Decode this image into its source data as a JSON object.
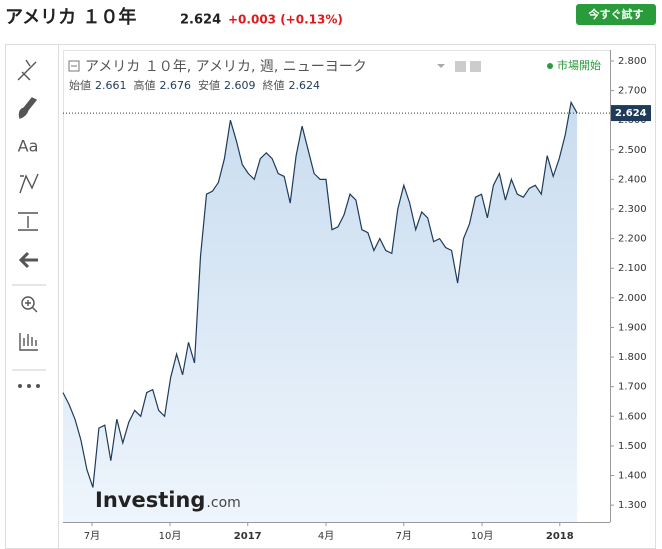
{
  "header": {
    "title": "アメリカ １０年",
    "price": "2.624",
    "change": "+0.003 (+0.13%)",
    "button": "今すぐ試す"
  },
  "toolbar": {
    "text_tool": "Aa"
  },
  "chart_data": {
    "type": "area",
    "legend": "アメリカ １０年, アメリカ, 週, ニューヨーク",
    "status": "市場開始",
    "ohlc": [
      {
        "label": "始値",
        "value": 2.661
      },
      {
        "label": "高値",
        "value": 2.676
      },
      {
        "label": "安値",
        "value": 2.609
      },
      {
        "label": "終値",
        "value": 2.624
      }
    ],
    "watermark": {
      "brand": "Investing",
      "suffix": ".com"
    },
    "last_value": 2.624,
    "color": "#1f3b5a",
    "x": [
      0,
      1,
      2,
      3,
      4,
      5,
      6,
      7,
      8,
      9,
      10,
      11,
      12,
      13,
      14,
      15,
      16,
      17,
      18,
      19,
      20,
      21,
      22,
      23,
      24,
      25,
      26,
      27,
      28,
      29,
      30,
      31,
      32,
      33,
      34,
      35,
      36,
      37,
      38,
      39,
      40,
      41,
      42,
      43,
      44,
      45,
      46,
      47,
      48,
      49,
      50,
      51,
      52,
      53,
      54,
      55,
      56,
      57,
      58,
      59,
      60,
      61,
      62,
      63,
      64,
      65,
      66,
      67,
      68,
      69,
      70,
      71,
      72,
      73,
      74,
      75,
      76,
      77,
      78,
      79,
      80,
      81,
      82,
      83,
      84,
      85,
      86
    ],
    "values": [
      1.68,
      1.64,
      1.59,
      1.52,
      1.42,
      1.36,
      1.56,
      1.57,
      1.45,
      1.59,
      1.51,
      1.58,
      1.62,
      1.6,
      1.68,
      1.69,
      1.62,
      1.6,
      1.73,
      1.81,
      1.74,
      1.85,
      1.78,
      2.14,
      2.35,
      2.36,
      2.39,
      2.47,
      2.6,
      2.53,
      2.45,
      2.42,
      2.4,
      2.47,
      2.49,
      2.47,
      2.42,
      2.41,
      2.32,
      2.48,
      2.58,
      2.5,
      2.42,
      2.4,
      2.4,
      2.23,
      2.24,
      2.28,
      2.35,
      2.33,
      2.23,
      2.22,
      2.16,
      2.2,
      2.16,
      2.15,
      2.3,
      2.38,
      2.32,
      2.23,
      2.29,
      2.27,
      2.19,
      2.2,
      2.17,
      2.16,
      2.05,
      2.2,
      2.25,
      2.34,
      2.35,
      2.27,
      2.38,
      2.42,
      2.33,
      2.4,
      2.35,
      2.34,
      2.37,
      2.38,
      2.35,
      2.48,
      2.41,
      2.47,
      2.55,
      2.66,
      2.624
    ],
    "xlim": [
      0,
      91.5
    ],
    "xticks": [
      {
        "value": 4.85,
        "label": "7月"
      },
      {
        "value": 17.9,
        "label": "10月"
      },
      {
        "value": 30.9,
        "label": "2017"
      },
      {
        "value": 44.0,
        "label": "4月"
      },
      {
        "value": 57.0,
        "label": "7月"
      },
      {
        "value": 70.1,
        "label": "10月"
      },
      {
        "value": 83.1,
        "label": "2018"
      }
    ],
    "ylim": [
      1.243,
      2.837
    ],
    "yticks": [
      {
        "value": 1.3,
        "label": "1.300"
      },
      {
        "value": 1.4,
        "label": "1.400"
      },
      {
        "value": 1.5,
        "label": "1.500"
      },
      {
        "value": 1.6,
        "label": "1.600"
      },
      {
        "value": 1.7,
        "label": "1.700"
      },
      {
        "value": 1.8,
        "label": "1.800"
      },
      {
        "value": 1.9,
        "label": "1.900"
      },
      {
        "value": 2.0,
        "label": "2.000"
      },
      {
        "value": 2.1,
        "label": "2.100"
      },
      {
        "value": 2.2,
        "label": "2.200"
      },
      {
        "value": 2.3,
        "label": "2.300"
      },
      {
        "value": 2.4,
        "label": "2.400"
      },
      {
        "value": 2.5,
        "label": "2.500"
      },
      {
        "value": 2.6,
        "label": "2.600"
      },
      {
        "value": 2.7,
        "label": "2.700"
      },
      {
        "value": 2.8,
        "label": "2.800"
      }
    ]
  }
}
